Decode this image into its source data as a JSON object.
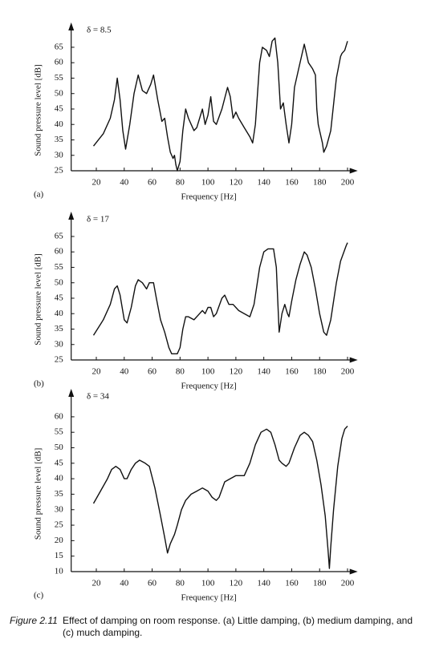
{
  "chart_data": [
    {
      "type": "line",
      "panel": "(a)",
      "annotation": "δ = 8.5",
      "xlabel": "Frequency [Hz]",
      "ylabel": "Sound pressure level [dB]",
      "color": "#111111",
      "xlim": [
        2,
        205
      ],
      "ylim": [
        25,
        72
      ],
      "xticks": [
        20,
        40,
        60,
        80,
        100,
        120,
        140,
        160,
        180,
        200
      ],
      "yticks": [
        25,
        30,
        35,
        40,
        45,
        50,
        55,
        60,
        65
      ],
      "x": [
        18,
        25,
        30,
        33,
        35,
        37,
        39,
        41,
        44,
        47,
        50,
        53,
        56,
        59,
        61,
        64,
        67,
        69,
        71,
        73,
        75,
        76,
        77,
        78,
        80,
        82,
        84,
        86,
        88,
        90,
        92,
        96,
        98,
        100,
        102,
        104,
        106,
        110,
        114,
        116,
        118,
        120,
        122,
        126,
        130,
        132,
        134,
        137,
        139,
        142,
        144,
        146,
        148,
        150,
        152,
        153,
        154,
        156,
        158,
        160,
        162,
        165,
        169,
        172,
        175,
        177,
        178,
        179,
        180,
        182,
        183,
        185,
        188,
        192,
        195,
        196,
        198,
        200
      ],
      "values": [
        33,
        37,
        42,
        48,
        55,
        48,
        38,
        32,
        40,
        50,
        56,
        51,
        50,
        53,
        56,
        48,
        41,
        42,
        36,
        31,
        29,
        30,
        27,
        25,
        28,
        38,
        45,
        42,
        40,
        38,
        39,
        45,
        40,
        43,
        49,
        41,
        40,
        45,
        52,
        49,
        42,
        44,
        42,
        39,
        36,
        34,
        40,
        60,
        65,
        64,
        62,
        67,
        68,
        60,
        45,
        46,
        47,
        40,
        34,
        40,
        52,
        58,
        66,
        60,
        58,
        56,
        45,
        40,
        38,
        34,
        31,
        33,
        38,
        55,
        62,
        63,
        64,
        67
      ]
    },
    {
      "type": "line",
      "panel": "(b)",
      "annotation": "δ = 17",
      "xlabel": "Frequency [Hz]",
      "ylabel": "Sound pressure level [dB]",
      "color": "#111111",
      "xlim": [
        2,
        205
      ],
      "ylim": [
        25,
        72
      ],
      "xticks": [
        20,
        40,
        60,
        80,
        100,
        120,
        140,
        160,
        180,
        200
      ],
      "yticks": [
        25,
        30,
        35,
        40,
        45,
        50,
        55,
        60,
        65
      ],
      "x": [
        18,
        25,
        30,
        33,
        35,
        37,
        40,
        42,
        45,
        48,
        50,
        53,
        56,
        58,
        61,
        63,
        66,
        69,
        72,
        74,
        78,
        80,
        82,
        84,
        86,
        90,
        94,
        96,
        98,
        100,
        102,
        104,
        106,
        110,
        112,
        115,
        118,
        122,
        126,
        130,
        133,
        137,
        140,
        143,
        145,
        147,
        149,
        150,
        151,
        153,
        155,
        157,
        158,
        160,
        163,
        166,
        169,
        171,
        174,
        177,
        180,
        183,
        185,
        188,
        192,
        195,
        199,
        200
      ],
      "values": [
        33,
        38,
        43,
        48,
        49,
        46,
        38,
        37,
        42,
        49,
        51,
        50,
        48,
        50,
        50,
        45,
        38,
        34,
        29,
        27,
        27,
        29,
        35,
        39,
        39,
        38,
        40,
        41,
        40,
        42,
        42,
        39,
        40,
        45,
        46,
        43,
        43,
        41,
        40,
        39,
        43,
        55,
        60,
        61,
        61,
        61,
        55,
        44,
        34,
        40,
        43,
        40,
        39,
        44,
        51,
        56,
        60,
        59,
        55,
        48,
        40,
        34,
        33,
        38,
        50,
        57,
        62,
        63
      ]
    },
    {
      "type": "line",
      "panel": "(c)",
      "annotation": "δ = 34",
      "xlabel": "Frequency [Hz]",
      "ylabel": "Sound pressure level [dB]",
      "color": "#111111",
      "xlim": [
        2,
        205
      ],
      "ylim": [
        10,
        68
      ],
      "xticks": [
        20,
        40,
        60,
        80,
        100,
        120,
        140,
        160,
        180,
        200
      ],
      "yticks": [
        10,
        15,
        20,
        25,
        30,
        35,
        40,
        45,
        50,
        55,
        60
      ],
      "x": [
        18,
        23,
        28,
        31,
        34,
        37,
        40,
        42,
        45,
        48,
        51,
        55,
        58,
        62,
        66,
        69,
        71,
        73,
        76,
        78,
        81,
        84,
        88,
        92,
        96,
        100,
        103,
        106,
        108,
        112,
        116,
        120,
        126,
        130,
        134,
        138,
        142,
        145,
        148,
        151,
        153,
        156,
        158,
        162,
        166,
        169,
        172,
        175,
        178,
        181,
        184,
        186,
        187,
        188,
        190,
        193,
        196,
        198,
        200
      ],
      "values": [
        32,
        36,
        40,
        43,
        44,
        43,
        40,
        40,
        43,
        45,
        46,
        45,
        44,
        37,
        28,
        21,
        16,
        19,
        22,
        25,
        30,
        33,
        35,
        36,
        37,
        36,
        34,
        33,
        34,
        39,
        40,
        41,
        41,
        45,
        51,
        55,
        56,
        55,
        51,
        46,
        45,
        44,
        45,
        50,
        54,
        55,
        54,
        52,
        46,
        38,
        28,
        17,
        11,
        18,
        30,
        44,
        53,
        56,
        57
      ]
    }
  ],
  "caption": {
    "label": "Figure 2.11",
    "text": "Effect of damping on room response. (a) Little damping, (b) medium damping, and (c) much damping."
  }
}
